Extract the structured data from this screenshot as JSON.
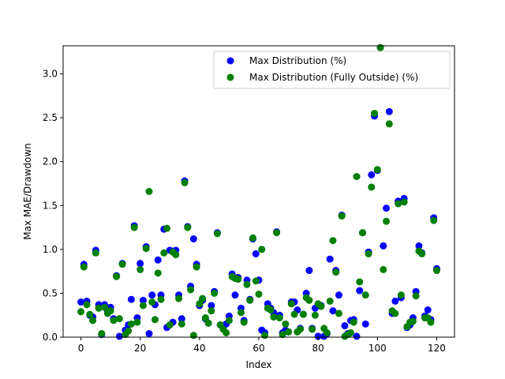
{
  "chart_data": {
    "type": "scatter",
    "title": "",
    "xlabel": "Index",
    "ylabel": "Max MAE/Drawdown",
    "xlim": [
      -6,
      126
    ],
    "ylim": [
      0,
      3.32
    ],
    "xticks": [
      0,
      20,
      40,
      60,
      80,
      100,
      120
    ],
    "yticks": [
      0.0,
      0.5,
      1.0,
      1.5,
      2.0,
      2.5,
      3.0
    ],
    "xtick_labels": [
      "0",
      "20",
      "40",
      "60",
      "80",
      "100",
      "120"
    ],
    "ytick_labels": [
      "0.0",
      "0.5",
      "1.0",
      "1.5",
      "2.0",
      "2.5",
      "3.0"
    ],
    "grid": false,
    "legend_position": "top-right",
    "series": [
      {
        "name": "Max Distribution (%)",
        "color": "#0000ff",
        "x": [
          0,
          1,
          2,
          3,
          4,
          5,
          6,
          7,
          8,
          9,
          10,
          11,
          12,
          13,
          14,
          15,
          16,
          17,
          18,
          19,
          20,
          21,
          22,
          23,
          24,
          25,
          26,
          27,
          28,
          29,
          30,
          31,
          32,
          33,
          34,
          35,
          36,
          37,
          38,
          39,
          40,
          41,
          42,
          43,
          44,
          45,
          46,
          47,
          48,
          49,
          50,
          51,
          52,
          53,
          54,
          55,
          56,
          57,
          58,
          59,
          60,
          61,
          62,
          63,
          64,
          65,
          66,
          67,
          68,
          69,
          70,
          71,
          72,
          73,
          74,
          75,
          76,
          77,
          78,
          79,
          80,
          81,
          82,
          83,
          84,
          85,
          86,
          87,
          88,
          89,
          90,
          91,
          92,
          93,
          94,
          95,
          96,
          97,
          98,
          99,
          100,
          101,
          102,
          103,
          104,
          105,
          106,
          107,
          108,
          109,
          110,
          111,
          112,
          113,
          114,
          115,
          116,
          117,
          118,
          119,
          120
        ],
        "y": [
          0.4,
          0.83,
          0.41,
          0.25,
          0.23,
          0.99,
          0.37,
          0.03,
          0.37,
          0.3,
          0.34,
          0.21,
          0.7,
          0.01,
          0.84,
          0.08,
          0.14,
          0.43,
          1.27,
          0.22,
          0.84,
          0.42,
          1.03,
          0.04,
          0.48,
          0.37,
          0.88,
          0.48,
          1.23,
          0.11,
          0.99,
          0.17,
          0.99,
          0.48,
          0.21,
          1.78,
          1.26,
          0.58,
          1.12,
          0.83,
          0.36,
          0.42,
          0.21,
          0.16,
          0.36,
          0.52,
          1.19,
          0.14,
          0.12,
          0.15,
          0.24,
          0.72,
          0.48,
          0.68,
          0.33,
          0.19,
          0.65,
          0.43,
          1.12,
          0.95,
          0.65,
          0.08,
          0.05,
          0.38,
          0.33,
          0.28,
          1.2,
          0.25,
          0.05,
          0.08,
          0.06,
          0.4,
          0.4,
          0.31,
          0.1,
          0.26,
          0.5,
          0.76,
          0.1,
          0.33,
          0.01,
          0.36,
          0.01,
          0.04,
          0.89,
          0.3,
          0.76,
          0.48,
          1.39,
          0.13,
          0.04,
          0.19,
          0.2,
          0.01,
          0.53,
          1.19,
          0.15,
          0.97,
          1.85,
          2.52,
          1.9,
          3.3,
          1.04,
          1.47,
          2.57,
          0.27,
          0.41,
          1.55,
          0.45,
          1.58,
          0.11,
          0.14,
          0.22,
          0.52,
          1.04,
          0.96,
          0.24,
          0.31,
          0.2,
          1.36,
          0.78
        ]
      },
      {
        "name": "Max Distribution (Fully Outside) (%)",
        "color": "#008000",
        "x": [
          0,
          1,
          2,
          3,
          4,
          5,
          6,
          7,
          8,
          9,
          10,
          11,
          12,
          13,
          14,
          15,
          16,
          17,
          18,
          19,
          20,
          21,
          22,
          23,
          24,
          25,
          26,
          27,
          28,
          29,
          30,
          31,
          32,
          33,
          34,
          35,
          36,
          37,
          38,
          39,
          40,
          41,
          42,
          43,
          44,
          45,
          46,
          47,
          48,
          49,
          50,
          51,
          52,
          53,
          54,
          55,
          56,
          57,
          58,
          59,
          60,
          61,
          62,
          63,
          64,
          65,
          66,
          67,
          68,
          69,
          70,
          71,
          72,
          73,
          74,
          75,
          76,
          77,
          78,
          79,
          80,
          81,
          82,
          83,
          84,
          85,
          86,
          87,
          88,
          89,
          90,
          91,
          92,
          93,
          94,
          95,
          96,
          97,
          98,
          99,
          100,
          101,
          102,
          103,
          104,
          105,
          106,
          107,
          108,
          109,
          110,
          111,
          112,
          113,
          114,
          115,
          116,
          117,
          118,
          119,
          120
        ],
        "y": [
          0.29,
          0.8,
          0.37,
          0.26,
          0.19,
          0.96,
          0.33,
          0.04,
          0.34,
          0.27,
          0.3,
          0.19,
          0.69,
          0.21,
          0.83,
          0.03,
          0.07,
          0.15,
          1.25,
          0.17,
          0.77,
          0.36,
          1.01,
          1.66,
          0.4,
          0.2,
          0.73,
          0.43,
          0.96,
          1.24,
          0.14,
          0.97,
          0.94,
          0.44,
          0.15,
          1.76,
          1.25,
          0.54,
          0.02,
          0.8,
          0.38,
          0.44,
          0.22,
          0.16,
          0.3,
          0.5,
          1.18,
          0.14,
          0.09,
          0.05,
          0.19,
          0.69,
          0.67,
          0.66,
          0.28,
          0.17,
          0.6,
          0.42,
          1.13,
          0.64,
          0.49,
          1.0,
          0.02,
          0.33,
          0.31,
          0.23,
          1.19,
          0.22,
          0.03,
          0.15,
          0.06,
          0.38,
          0.26,
          0.06,
          0.09,
          0.26,
          0.45,
          0.42,
          0.09,
          0.25,
          0.38,
          0.35,
          0.1,
          0.05,
          0.41,
          1.1,
          0.74,
          0.27,
          1.38,
          0.01,
          0.03,
          0.05,
          0.17,
          1.83,
          0.63,
          1.19,
          0.48,
          0.95,
          1.71,
          2.55,
          1.91,
          3.3,
          0.77,
          1.32,
          2.43,
          0.3,
          0.27,
          1.52,
          0.48,
          1.54,
          0.12,
          0.17,
          0.18,
          0.47,
          0.98,
          0.95,
          0.22,
          0.22,
          0.17,
          1.33,
          0.76
        ]
      }
    ]
  }
}
